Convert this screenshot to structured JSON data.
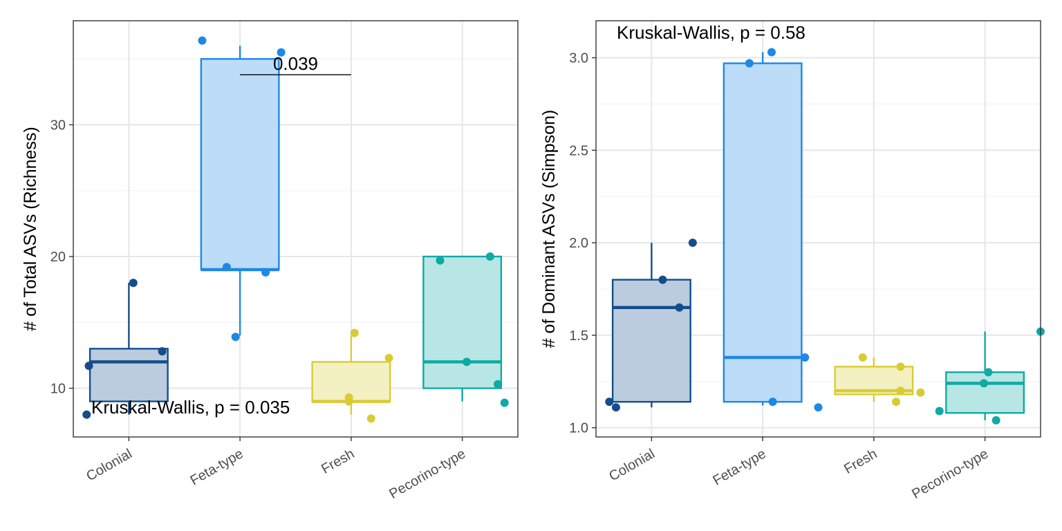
{
  "colors": {
    "Colonial": "#144d8c",
    "Feta-type": "#1e88e5",
    "Fresh": "#d9cc33",
    "Pecorino-type": "#0eaaa4"
  },
  "fills": {
    "Colonial": "#b8cadc",
    "Feta-type": "#badbf8",
    "Fresh": "#f3efbf",
    "Pecorino-type": "#b6e5e3"
  },
  "chart_data": [
    {
      "type": "box",
      "categories": [
        "Colonial",
        "Feta-type",
        "Fresh",
        "Pecorino-type"
      ],
      "ylabel": "# of Total ASVs (Richness)",
      "ylim": [
        6.3,
        37.9
      ],
      "yticks": [
        10,
        20,
        30
      ],
      "grid": true,
      "boxes": [
        {
          "category": "Colonial",
          "q1": 9,
          "median": 12,
          "q3": 13,
          "min": 8,
          "max": 18
        },
        {
          "category": "Feta-type",
          "q1": 19,
          "median": 19,
          "q3": 35,
          "min": 14,
          "max": 36
        },
        {
          "category": "Fresh",
          "q1": 9,
          "median": 9,
          "q3": 12,
          "min": 8,
          "max": 14
        },
        {
          "category": "Pecorino-type",
          "q1": 10,
          "median": 12,
          "q3": 20,
          "min": 9,
          "max": 20
        }
      ],
      "points": [
        {
          "category": "Colonial",
          "y": 8,
          "jitter": -0.38
        },
        {
          "category": "Colonial",
          "y": 11.7,
          "jitter": -0.36
        },
        {
          "category": "Colonial",
          "y": 12.8,
          "jitter": 0.3
        },
        {
          "category": "Colonial",
          "y": 18,
          "jitter": 0.04
        },
        {
          "category": "Feta-type",
          "y": 36.4,
          "jitter": -0.34
        },
        {
          "category": "Feta-type",
          "y": 35.5,
          "jitter": 0.37
        },
        {
          "category": "Feta-type",
          "y": 19.2,
          "jitter": -0.12
        },
        {
          "category": "Feta-type",
          "y": 18.8,
          "jitter": 0.23
        },
        {
          "category": "Feta-type",
          "y": 13.9,
          "jitter": -0.04
        },
        {
          "category": "Fresh",
          "y": 14.2,
          "jitter": 0.03
        },
        {
          "category": "Fresh",
          "y": 12.3,
          "jitter": 0.34
        },
        {
          "category": "Fresh",
          "y": 9.3,
          "jitter": -0.02
        },
        {
          "category": "Fresh",
          "y": 9.0,
          "jitter": -0.02
        },
        {
          "category": "Fresh",
          "y": 7.7,
          "jitter": 0.18
        },
        {
          "category": "Pecorino-type",
          "y": 19.7,
          "jitter": -0.2
        },
        {
          "category": "Pecorino-type",
          "y": 20.0,
          "jitter": 0.25
        },
        {
          "category": "Pecorino-type",
          "y": 12.0,
          "jitter": 0.04
        },
        {
          "category": "Pecorino-type",
          "y": 10.3,
          "jitter": 0.32
        },
        {
          "category": "Pecorino-type",
          "y": 8.9,
          "jitter": 0.38
        }
      ],
      "annotations": {
        "test": "Kruskal-Wallis, p = 0.035",
        "bracket_label": "0.039",
        "bracket_from": "Feta-type",
        "bracket_to": "Fresh",
        "bracket_y": 33.8,
        "test_position": "bottom-left"
      }
    },
    {
      "type": "box",
      "categories": [
        "Colonial",
        "Feta-type",
        "Fresh",
        "Pecorino-type"
      ],
      "ylabel": "# of Dominant ASVs (Simpson)",
      "ylim": [
        0.95,
        3.2
      ],
      "yticks": [
        1.0,
        1.5,
        2.0,
        2.5,
        3.0
      ],
      "ytick_labels": [
        "1.0",
        "1.5",
        "2.0",
        "2.5",
        "3.0"
      ],
      "grid": true,
      "boxes": [
        {
          "category": "Colonial",
          "q1": 1.14,
          "median": 1.65,
          "q3": 1.8,
          "min": 1.11,
          "max": 2.0
        },
        {
          "category": "Feta-type",
          "q1": 1.14,
          "median": 1.38,
          "q3": 2.97,
          "min": 1.12,
          "max": 3.03
        },
        {
          "category": "Fresh",
          "q1": 1.18,
          "median": 1.2,
          "q3": 1.33,
          "min": 1.14,
          "max": 1.38
        },
        {
          "category": "Pecorino-type",
          "q1": 1.08,
          "median": 1.24,
          "q3": 1.3,
          "min": 1.04,
          "max": 1.52
        }
      ],
      "points": [
        {
          "category": "Colonial",
          "y": 1.14,
          "jitter": -0.38
        },
        {
          "category": "Colonial",
          "y": 1.11,
          "jitter": -0.32
        },
        {
          "category": "Colonial",
          "y": 1.8,
          "jitter": 0.1
        },
        {
          "category": "Colonial",
          "y": 1.65,
          "jitter": 0.25
        },
        {
          "category": "Colonial",
          "y": 2.0,
          "jitter": 0.37
        },
        {
          "category": "Feta-type",
          "y": 2.97,
          "jitter": -0.12
        },
        {
          "category": "Feta-type",
          "y": 3.03,
          "jitter": 0.08
        },
        {
          "category": "Feta-type",
          "y": 1.38,
          "jitter": 0.38
        },
        {
          "category": "Feta-type",
          "y": 1.14,
          "jitter": 0.09
        },
        {
          "category": "Feta-type",
          "y": 1.11,
          "jitter": 0.5
        },
        {
          "category": "Fresh",
          "y": 1.38,
          "jitter": -0.1
        },
        {
          "category": "Fresh",
          "y": 1.33,
          "jitter": 0.24
        },
        {
          "category": "Fresh",
          "y": 1.2,
          "jitter": 0.24
        },
        {
          "category": "Fresh",
          "y": 1.19,
          "jitter": 0.42
        },
        {
          "category": "Fresh",
          "y": 1.14,
          "jitter": 0.2
        },
        {
          "category": "Pecorino-type",
          "y": 1.24,
          "jitter": -0.01
        },
        {
          "category": "Pecorino-type",
          "y": 1.3,
          "jitter": 0.03
        },
        {
          "category": "Pecorino-type",
          "y": 1.09,
          "jitter": -0.41
        },
        {
          "category": "Pecorino-type",
          "y": 1.04,
          "jitter": 0.1
        },
        {
          "category": "Pecorino-type",
          "y": 1.52,
          "jitter": 0.5
        }
      ],
      "annotations": {
        "test": "Kruskal-Wallis, p = 0.58",
        "test_position": "top-left"
      }
    }
  ]
}
